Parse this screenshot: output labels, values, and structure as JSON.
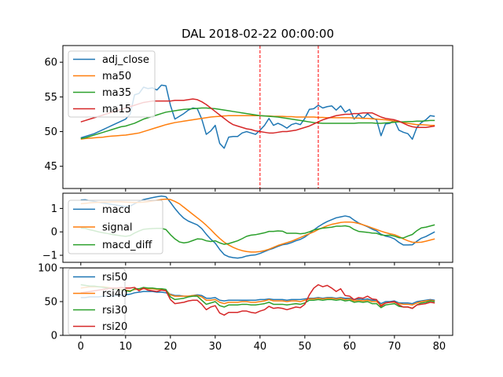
{
  "chart_data": {
    "title": "DAL 2018-02-22 00:00:00",
    "type": "line",
    "colors": {
      "blue": "#1f77b4",
      "orange": "#ff7f0e",
      "green": "#2ca02c",
      "red": "#d62728",
      "vline": "#ff0000"
    },
    "x_ticks": [
      0,
      10,
      20,
      30,
      40,
      50,
      60,
      70,
      80
    ],
    "x_range": [
      -4,
      83
    ],
    "vlines": [
      40,
      53
    ],
    "panels": [
      {
        "id": "price",
        "ylim": [
          41.8,
          62.4
        ],
        "yticks": [
          45,
          50,
          55,
          60
        ],
        "series": [
          {
            "name": "adj_close",
            "color": "#1f77b4",
            "values": [
              49.1,
              49.3,
              49.5,
              49.7,
              50.0,
              50.3,
              50.6,
              50.9,
              51.2,
              51.5,
              51.8,
              52.5,
              55.3,
              55.5,
              56.4,
              56.2,
              56.3,
              56.0,
              56.7,
              56.6,
              53.8,
              51.8,
              52.2,
              52.6,
              53.1,
              53.4,
              53.3,
              51.8,
              49.6,
              50.1,
              50.9,
              48.3,
              47.6,
              49.2,
              49.3,
              49.3,
              49.8,
              50.0,
              49.8,
              49.6,
              50.2,
              50.9,
              51.9,
              50.9,
              51.2,
              50.9,
              50.5,
              51.0,
              51.2,
              51.0,
              51.9,
              53.2,
              53.3,
              53.8,
              53.4,
              53.6,
              53.7,
              53.1,
              53.7,
              52.8,
              53.2,
              51.8,
              52.5,
              51.9,
              52.6,
              52.0,
              51.7,
              49.4,
              51.1,
              51.2,
              51.6,
              50.2,
              49.9,
              49.7,
              48.9,
              50.6,
              51.3,
              51.7,
              52.3,
              52.2
            ]
          },
          {
            "name": "ma50",
            "color": "#ff7f0e",
            "values": [
              48.9,
              49.0,
              49.05,
              49.1,
              49.15,
              49.2,
              49.3,
              49.35,
              49.4,
              49.45,
              49.5,
              49.6,
              49.7,
              49.8,
              50.0,
              50.2,
              50.4,
              50.6,
              50.8,
              51.0,
              51.15,
              51.3,
              51.4,
              51.5,
              51.6,
              51.7,
              51.8,
              51.9,
              52.0,
              52.1,
              52.15,
              52.2,
              52.25,
              52.3,
              52.3,
              52.3,
              52.3,
              52.3,
              52.3,
              52.3,
              52.3,
              52.25,
              52.25,
              52.2,
              52.2,
              52.2,
              52.15,
              52.15,
              52.1,
              52.1,
              52.1,
              52.1,
              52.1,
              52.05,
              52.05,
              52.0,
              52.0,
              52.0,
              52.0,
              52.0,
              52.0,
              51.95,
              51.95,
              51.9,
              51.9,
              51.85,
              51.8,
              51.75,
              51.7,
              51.6,
              51.5,
              51.4,
              51.3,
              51.2,
              51.1,
              51.0,
              51.0,
              50.95,
              50.9,
              50.9
            ]
          },
          {
            "name": "ma35",
            "color": "#2ca02c",
            "values": [
              49.0,
              49.1,
              49.3,
              49.5,
              49.7,
              49.9,
              50.1,
              50.3,
              50.5,
              50.7,
              50.8,
              51.0,
              51.2,
              51.5,
              51.8,
              52.0,
              52.2,
              52.4,
              52.6,
              52.8,
              52.9,
              53.0,
              53.1,
              53.2,
              53.25,
              53.3,
              53.35,
              53.4,
              53.4,
              53.35,
              53.3,
              53.2,
              53.1,
              53.0,
              52.9,
              52.8,
              52.7,
              52.6,
              52.5,
              52.4,
              52.3,
              52.25,
              52.2,
              52.15,
              52.1,
              52.0,
              51.9,
              51.8,
              51.7,
              51.6,
              51.5,
              51.4,
              51.3,
              51.25,
              51.2,
              51.2,
              51.2,
              51.2,
              51.2,
              51.2,
              51.2,
              51.2,
              51.25,
              51.25,
              51.25,
              51.25,
              51.2,
              51.2,
              51.25,
              51.3,
              51.35,
              51.4,
              51.4,
              51.45,
              51.45,
              51.5,
              51.5,
              51.55,
              51.6,
              51.6
            ]
          },
          {
            "name": "ma15",
            "color": "#d62728",
            "values": [
              51.4,
              51.6,
              51.8,
              52.0,
              52.2,
              52.4,
              52.6,
              52.8,
              53.0,
              53.2,
              53.4,
              53.6,
              53.8,
              54.0,
              54.2,
              54.3,
              54.4,
              54.4,
              54.4,
              54.4,
              54.4,
              54.5,
              54.5,
              54.5,
              54.6,
              54.7,
              54.6,
              54.3,
              53.9,
              53.4,
              52.9,
              52.4,
              51.9,
              51.4,
              51.0,
              50.8,
              50.6,
              50.4,
              50.3,
              50.1,
              50.0,
              49.9,
              49.8,
              49.8,
              49.9,
              50.0,
              50.0,
              50.1,
              50.2,
              50.4,
              50.6,
              50.8,
              51.1,
              51.4,
              51.7,
              51.9,
              52.1,
              52.3,
              52.4,
              52.5,
              52.5,
              52.6,
              52.6,
              52.7,
              52.7,
              52.7,
              52.4,
              52.1,
              51.9,
              51.8,
              51.7,
              51.5,
              51.2,
              50.9,
              50.7,
              50.6,
              50.6,
              50.6,
              50.7,
              50.8
            ]
          }
        ]
      },
      {
        "id": "macd",
        "ylim": [
          -1.3,
          1.65
        ],
        "yticks": [
          -1,
          0,
          1
        ],
        "series": [
          {
            "name": "macd",
            "color": "#1f77b4",
            "values": [
              1.36,
              1.37,
              1.33,
              1.3,
              1.26,
              1.23,
              1.2,
              1.17,
              1.14,
              1.11,
              1.08,
              1.1,
              1.2,
              1.3,
              1.38,
              1.42,
              1.46,
              1.5,
              1.53,
              1.5,
              1.26,
              1.0,
              0.77,
              0.58,
              0.46,
              0.38,
              0.3,
              0.14,
              -0.1,
              -0.31,
              -0.48,
              -0.75,
              -0.97,
              -1.06,
              -1.1,
              -1.12,
              -1.09,
              -1.03,
              -1.0,
              -0.98,
              -0.92,
              -0.84,
              -0.76,
              -0.7,
              -0.62,
              -0.55,
              -0.52,
              -0.46,
              -0.38,
              -0.32,
              -0.22,
              -0.08,
              0.08,
              0.22,
              0.34,
              0.44,
              0.52,
              0.6,
              0.64,
              0.68,
              0.64,
              0.5,
              0.38,
              0.3,
              0.22,
              0.12,
              0.04,
              -0.1,
              -0.18,
              -0.22,
              -0.3,
              -0.45,
              -0.56,
              -0.56,
              -0.55,
              -0.4,
              -0.27,
              -0.2,
              -0.1,
              0.0
            ]
          },
          {
            "name": "signal",
            "color": "#ff7f0e",
            "values": [
              1.2,
              1.22,
              1.24,
              1.25,
              1.26,
              1.27,
              1.27,
              1.28,
              1.28,
              1.28,
              1.27,
              1.26,
              1.25,
              1.26,
              1.27,
              1.29,
              1.32,
              1.35,
              1.38,
              1.4,
              1.38,
              1.3,
              1.2,
              1.05,
              0.9,
              0.75,
              0.6,
              0.45,
              0.28,
              0.1,
              -0.1,
              -0.28,
              -0.44,
              -0.56,
              -0.66,
              -0.74,
              -0.8,
              -0.84,
              -0.86,
              -0.86,
              -0.84,
              -0.8,
              -0.74,
              -0.66,
              -0.58,
              -0.52,
              -0.46,
              -0.4,
              -0.32,
              -0.24,
              -0.16,
              -0.08,
              0.0,
              0.1,
              0.18,
              0.26,
              0.32,
              0.36,
              0.4,
              0.42,
              0.42,
              0.4,
              0.36,
              0.3,
              0.24,
              0.17,
              0.1,
              0.03,
              -0.03,
              -0.08,
              -0.12,
              -0.2,
              -0.3,
              -0.38,
              -0.44,
              -0.45,
              -0.44,
              -0.4,
              -0.35,
              -0.3
            ]
          },
          {
            "name": "macd_diff",
            "color": "#2ca02c",
            "values": [
              0.16,
              0.15,
              0.09,
              0.05,
              0.0,
              -0.04,
              -0.07,
              -0.11,
              -0.14,
              -0.17,
              -0.19,
              -0.16,
              -0.05,
              0.04,
              0.11,
              0.13,
              0.14,
              0.15,
              0.15,
              0.1,
              -0.12,
              -0.3,
              -0.43,
              -0.47,
              -0.44,
              -0.37,
              -0.3,
              -0.31,
              -0.38,
              -0.41,
              -0.38,
              -0.47,
              -0.53,
              -0.5,
              -0.44,
              -0.38,
              -0.29,
              -0.19,
              -0.14,
              -0.12,
              -0.08,
              -0.04,
              0.02,
              0.02,
              0.04,
              0.03,
              -0.06,
              -0.06,
              -0.06,
              -0.08,
              -0.06,
              0.0,
              0.08,
              0.12,
              0.16,
              0.18,
              0.2,
              0.24,
              0.24,
              0.26,
              0.22,
              0.1,
              0.02,
              0.0,
              -0.02,
              -0.05,
              -0.06,
              -0.13,
              -0.15,
              -0.14,
              -0.18,
              -0.25,
              -0.26,
              -0.18,
              -0.11,
              0.05,
              0.17,
              0.2,
              0.25,
              0.3
            ]
          }
        ]
      },
      {
        "id": "rsi",
        "ylim": [
          0,
          100
        ],
        "yticks": [
          0,
          50,
          100
        ],
        "series": [
          {
            "name": "rsi50",
            "color": "#1f77b4",
            "values": [
              56,
              56,
              57,
              57,
              57,
              58,
              58,
              58,
              59,
              59,
              60,
              61,
              63,
              64,
              65,
              65,
              65,
              64,
              64,
              63,
              61,
              59,
              59,
              58,
              58,
              59,
              60,
              59,
              55,
              55,
              56,
              52,
              51,
              52,
              52,
              52,
              52,
              52,
              52,
              52,
              53,
              53,
              54,
              53,
              53,
              53,
              52,
              53,
              53,
              53,
              54,
              55,
              55,
              56,
              55,
              56,
              56,
              55,
              56,
              55,
              55,
              53,
              54,
              53,
              54,
              52,
              52,
              47,
              50,
              50,
              51,
              48,
              48,
              48,
              47,
              50,
              51,
              52,
              53,
              52
            ]
          },
          {
            "name": "rsi40",
            "color": "#ff7f0e",
            "values": [
              70,
              71,
              72,
              72,
              72,
              72,
              71,
              70,
              69,
              68,
              67,
              66,
              68,
              68,
              69,
              69,
              69,
              68,
              68,
              67,
              60,
              58,
              58,
              58,
              58,
              59,
              59,
              57,
              52,
              52,
              53,
              49,
              47,
              49,
              49,
              49,
              50,
              50,
              49,
              49,
              50,
              51,
              53,
              51,
              51,
              51,
              50,
              51,
              51,
              50,
              52,
              54,
              54,
              55,
              54,
              55,
              55,
              54,
              55,
              53,
              54,
              51,
              52,
              51,
              52,
              50,
              50,
              45,
              48,
              49,
              49,
              47,
              46,
              46,
              45,
              48,
              50,
              51,
              52,
              51
            ]
          },
          {
            "name": "rsi30",
            "color": "#2ca02c",
            "values": [
              75,
              74,
              73,
              73,
              72,
              71,
              70,
              69,
              68,
              67,
              66,
              65,
              69,
              69,
              71,
              70,
              70,
              69,
              69,
              68,
              57,
              53,
              54,
              55,
              57,
              58,
              58,
              52,
              46,
              48,
              50,
              44,
              42,
              45,
              45,
              45,
              46,
              46,
              45,
              45,
              46,
              47,
              49,
              46,
              46,
              46,
              45,
              46,
              47,
              46,
              48,
              52,
              52,
              53,
              52,
              53,
              53,
              52,
              53,
              51,
              52,
              49,
              50,
              49,
              50,
              47,
              47,
              41,
              45,
              46,
              47,
              43,
              42,
              42,
              40,
              45,
              48,
              49,
              51,
              50
            ]
          },
          {
            "name": "rsi20",
            "color": "#d62728",
            "values": [
              63,
              64,
              65,
              66,
              67,
              68,
              69,
              70,
              70,
              71,
              70,
              70,
              71,
              66,
              70,
              67,
              66,
              65,
              67,
              66,
              53,
              47,
              48,
              49,
              51,
              52,
              52,
              46,
              38,
              42,
              44,
              33,
              30,
              34,
              34,
              34,
              36,
              36,
              34,
              33,
              36,
              38,
              43,
              40,
              41,
              40,
              38,
              40,
              42,
              41,
              46,
              60,
              70,
              75,
              72,
              74,
              70,
              65,
              69,
              59,
              58,
              53,
              56,
              55,
              58,
              54,
              53,
              43,
              48,
              49,
              50,
              45,
              42,
              42,
              40,
              45,
              46,
              47,
              49,
              48
            ]
          }
        ]
      }
    ]
  }
}
